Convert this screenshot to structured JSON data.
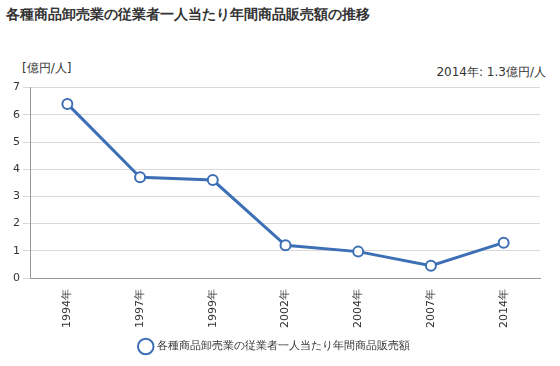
{
  "chart_data": {
    "type": "line",
    "title": "各種商品卸売業の従業者一人当たり年間商品販売額の推移",
    "y_label": "[億円/人]",
    "annotation": "2014年: 1.3億円/人",
    "categories": [
      "1994年",
      "1997年",
      "1999年",
      "2002年",
      "2004年",
      "2007年",
      "2014年"
    ],
    "series": [
      {
        "name": "各種商品卸売業の従業者一人当たり年間商品販売額",
        "color": "#3d6fb6",
        "marker": "circle",
        "line_style": "solid",
        "values": [
          6.4,
          3.7,
          3.6,
          1.2,
          0.97,
          0.45,
          1.3
        ]
      }
    ],
    "ylim": [
      0,
      7
    ],
    "yticks": [
      0,
      1,
      2,
      3,
      4,
      5,
      6,
      7
    ],
    "grid": true,
    "legend": "bottom"
  }
}
